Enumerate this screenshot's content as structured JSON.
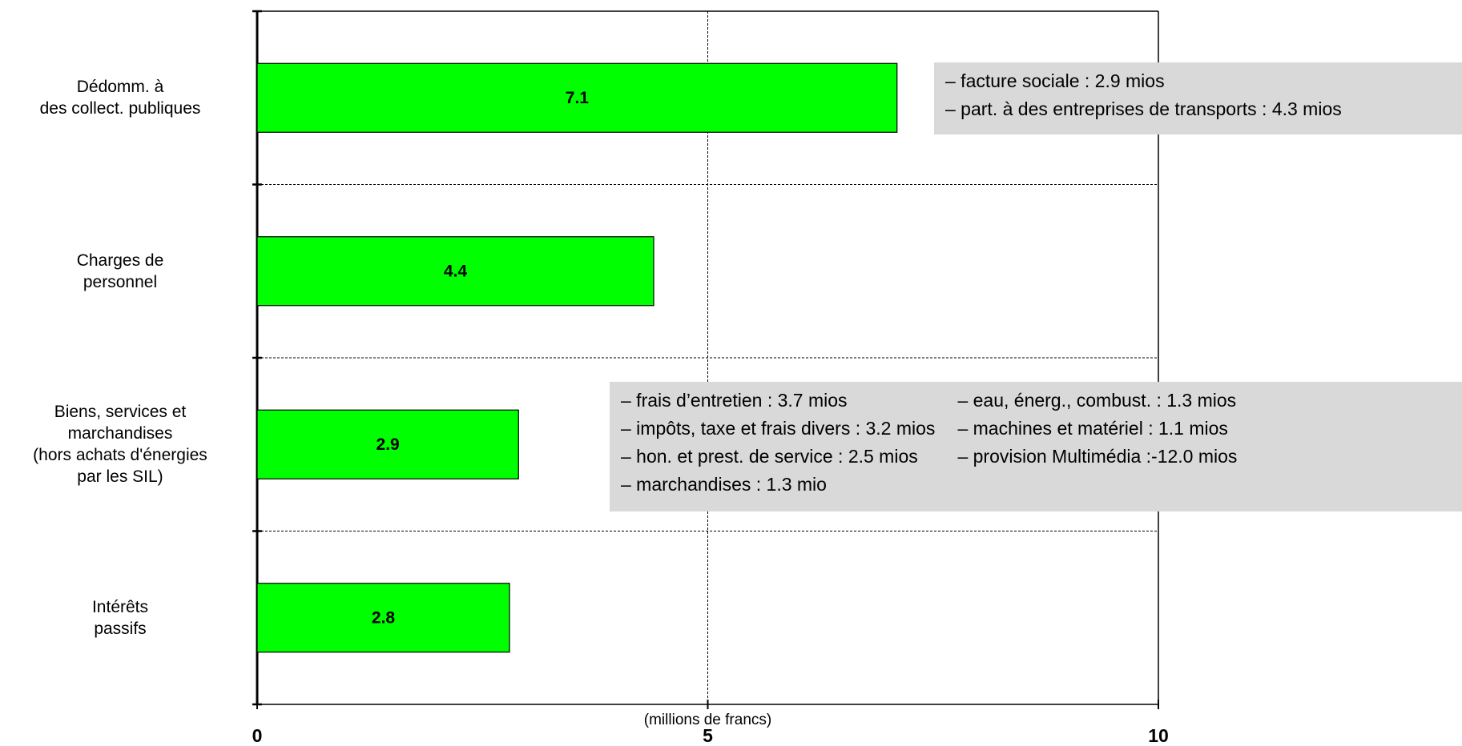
{
  "chart_data": {
    "type": "bar",
    "orientation": "horizontal",
    "categories": [
      "Dédomm. à\ndes collect. publiques",
      "Charges de\npersonnel",
      "Biens, services et\nmarchandises\n(hors achats d'énergies\npar les SIL)",
      "Intérêts\npassifs"
    ],
    "values": [
      7.1,
      4.4,
      2.9,
      2.8
    ],
    "color": "#00ff00",
    "xlim": [
      0,
      10
    ],
    "xticks": [
      0,
      5,
      10
    ],
    "grid": true,
    "x_label": "(millions de francs)",
    "annotations": [
      {
        "columns": [
          [
            "– facture sociale : 2.9 mios",
            "– part. à des entreprises de transports : 4.3 mios"
          ]
        ]
      },
      {
        "columns": [
          [
            "– frais d’entretien : 3.7 mios",
            "– impôts, taxe et frais divers : 3.2 mios",
            "– hon. et prest. de service : 2.5 mios",
            "– marchandises : 1.3 mio"
          ],
          [
            "– eau, énerg., combust. : 1.3 mios",
            "– machines et matériel : 1.1 mios",
            "– provision Multimédia :-12.0 mios"
          ]
        ]
      }
    ]
  }
}
